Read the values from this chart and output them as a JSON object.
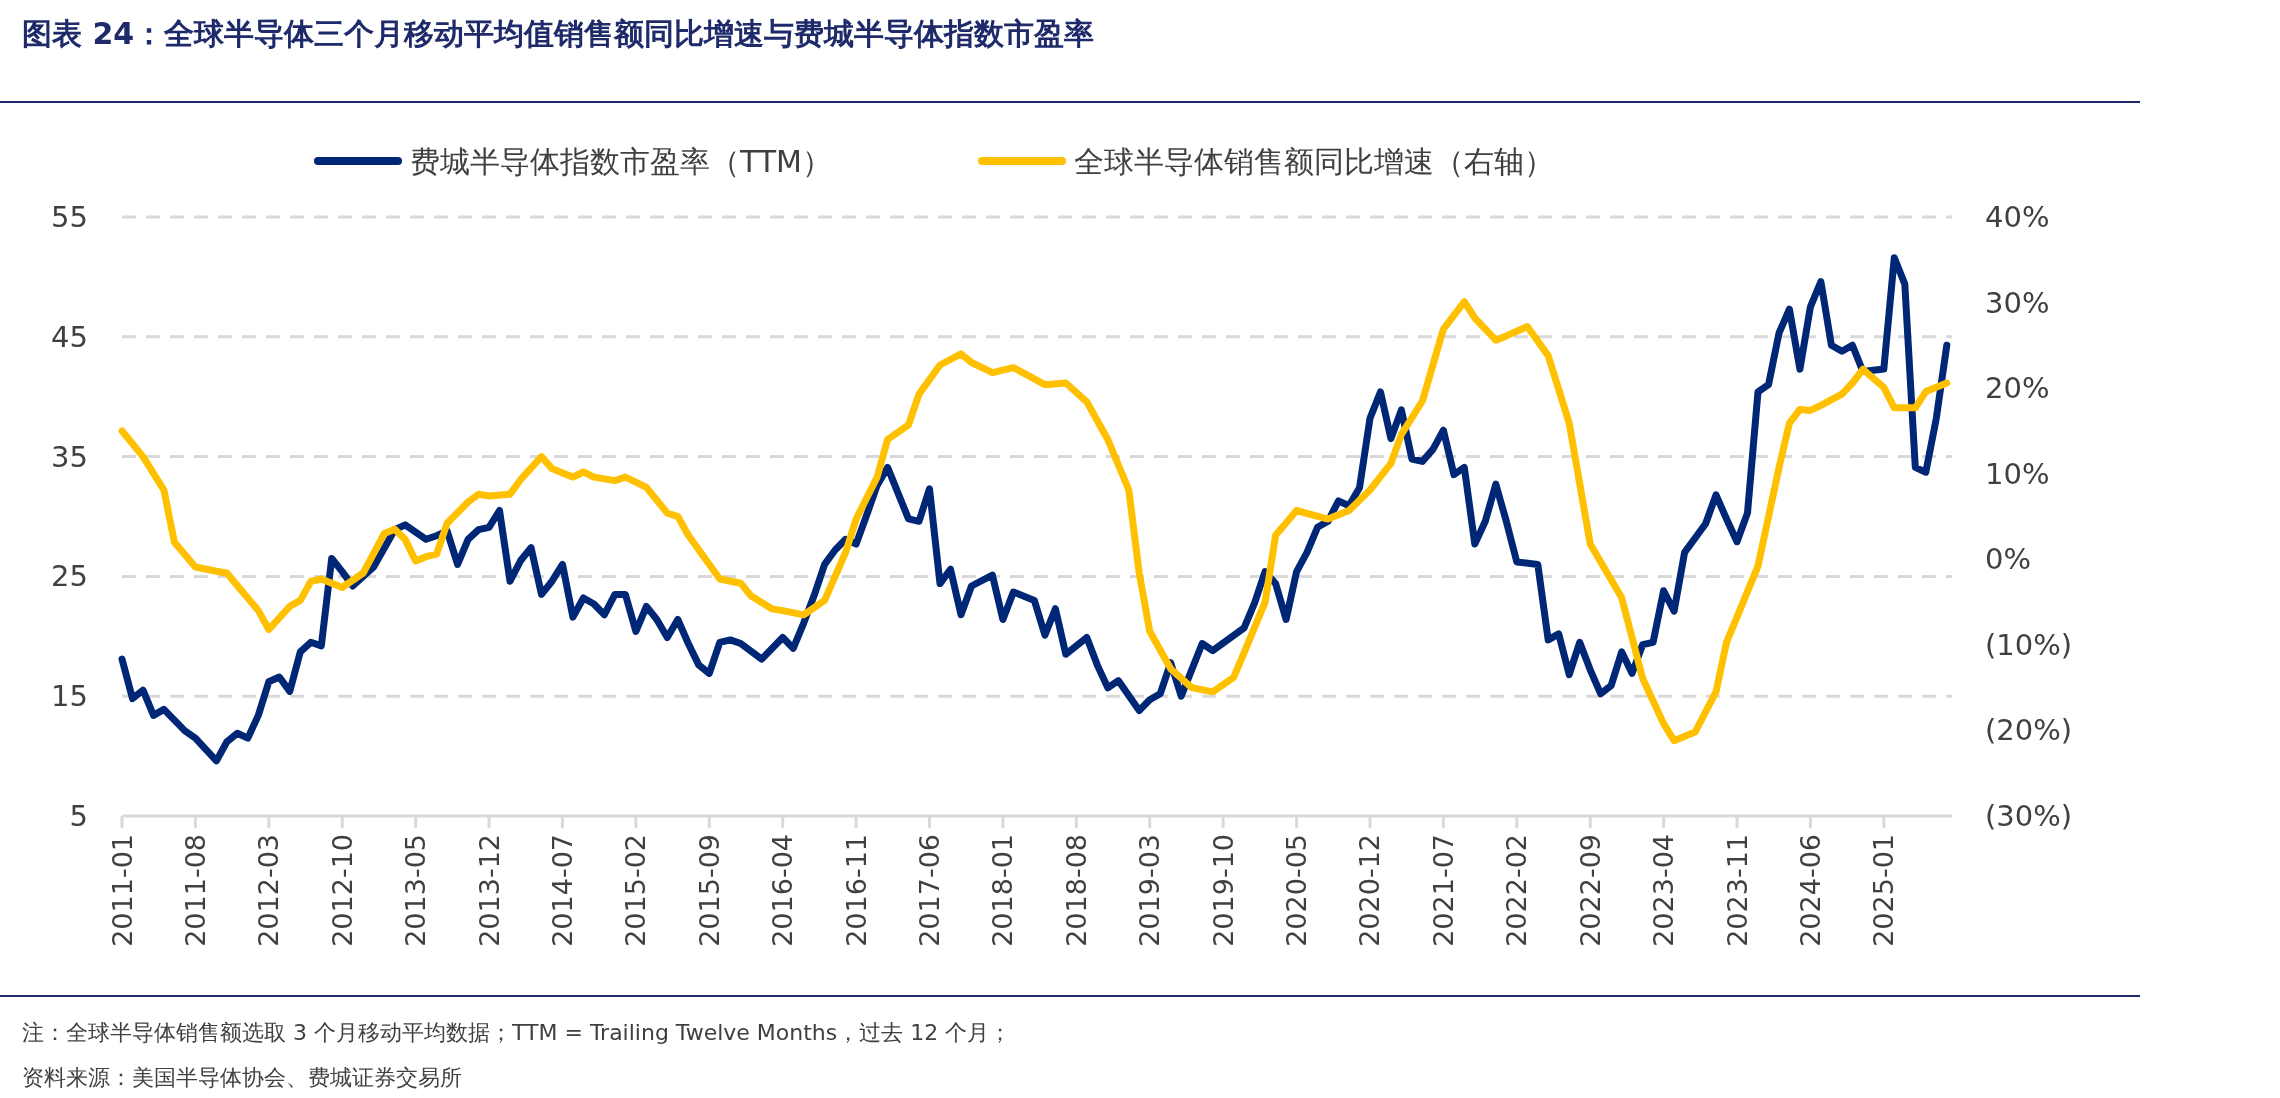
{
  "chart_data": {
    "type": "line",
    "title": "图表 24：全球半导体三个月移动平均值销售额同比增速与费城半导体指数市盈率",
    "xlim": [
      "2011-01",
      "2025-07-16"
    ],
    "xticks": [
      "2011-01",
      "2011-08",
      "2012-03",
      "2012-10",
      "2013-05",
      "2013-12",
      "2014-07",
      "2015-02",
      "2015-09",
      "2016-04",
      "2016-11",
      "2017-06",
      "2018-01",
      "2018-08",
      "2019-03",
      "2019-10",
      "2020-05",
      "2020-12",
      "2021-07",
      "2022-02",
      "2022-09",
      "2023-04",
      "2023-11",
      "2024-06",
      "2025-01"
    ],
    "ylim": [
      5,
      55
    ],
    "yticks": [
      5,
      15,
      25,
      35,
      45,
      55
    ],
    "y2lim": [
      -30,
      40
    ],
    "y2ticks": [
      {
        "value": -30,
        "label": "(30%)"
      },
      {
        "value": -20,
        "label": "(20%)"
      },
      {
        "value": -10,
        "label": "(10%)"
      },
      {
        "value": 0,
        "label": "0%"
      },
      {
        "value": 10,
        "label": "10%"
      },
      {
        "value": 20,
        "label": "20%"
      },
      {
        "value": 30,
        "label": "30%"
      },
      {
        "value": 40,
        "label": "40%"
      }
    ],
    "grid": "y",
    "legend": "top",
    "line_style": "solid",
    "series": [
      {
        "name": "费城半导体指数市盈率（TTM）",
        "color": "#002776",
        "x": [
          "2011-01",
          "2011-02",
          "2011-03",
          "2011-04",
          "2011-05",
          "2011-07",
          "2011-08",
          "2011-10",
          "2011-11",
          "2011-12",
          "2012-01",
          "2012-02",
          "2012-03",
          "2012-04",
          "2012-05",
          "2012-06",
          "2012-07",
          "2012-08",
          "2012-09",
          "2012-10",
          "2012-11",
          "2013-01",
          "2013-03",
          "2013-04",
          "2013-06",
          "2013-07",
          "2013-08",
          "2013-09",
          "2013-10",
          "2013-11",
          "2013-12",
          "2014-01",
          "2014-02",
          "2014-03",
          "2014-04",
          "2014-05",
          "2014-06",
          "2014-07",
          "2014-08",
          "2014-09",
          "2014-10",
          "2014-11",
          "2014-12",
          "2015-01",
          "2015-02",
          "2015-03",
          "2015-04",
          "2015-05",
          "2015-06",
          "2015-07",
          "2015-08",
          "2015-09",
          "2015-10",
          "2015-11",
          "2015-12",
          "2016-02",
          "2016-04",
          "2016-05",
          "2016-06",
          "2016-07",
          "2016-08",
          "2016-09",
          "2016-10",
          "2016-11",
          "2016-12",
          "2017-01",
          "2017-02",
          "2017-04",
          "2017-05",
          "2017-06",
          "2017-07",
          "2017-08",
          "2017-09",
          "2017-10",
          "2017-12",
          "2018-01",
          "2018-02",
          "2018-04",
          "2018-05",
          "2018-06",
          "2018-07",
          "2018-09",
          "2018-10",
          "2018-11",
          "2018-12",
          "2019-02",
          "2019-03",
          "2019-04",
          "2019-05",
          "2019-06",
          "2019-08",
          "2019-09",
          "2019-12",
          "2020-01",
          "2020-02",
          "2020-03",
          "2020-04",
          "2020-05",
          "2020-06",
          "2020-07",
          "2020-08",
          "2020-09",
          "2020-10",
          "2020-11",
          "2020-12",
          "2021-01",
          "2021-02",
          "2021-03",
          "2021-04",
          "2021-05",
          "2021-06",
          "2021-07",
          "2021-08",
          "2021-09",
          "2021-10",
          "2021-11",
          "2021-12",
          "2022-01",
          "2022-02",
          "2022-04",
          "2022-05",
          "2022-06",
          "2022-07",
          "2022-08",
          "2022-09",
          "2022-10",
          "2022-11",
          "2022-12",
          "2023-01",
          "2023-02",
          "2023-03",
          "2023-04",
          "2023-05",
          "2023-06",
          "2023-08",
          "2023-09",
          "2023-10",
          "2023-11",
          "2023-12",
          "2024-01",
          "2024-02",
          "2024-03",
          "2024-04",
          "2024-05",
          "2024-06",
          "2024-07",
          "2024-08",
          "2024-09",
          "2024-10",
          "2024-11",
          "2025-01",
          "2025-02",
          "2025-03",
          "2025-04",
          "2025-05",
          "2025-06",
          "2025-07"
        ],
        "values": [
          18.1,
          14.8,
          15.5,
          13.4,
          13.9,
          12.1,
          11.5,
          9.6,
          11.2,
          11.9,
          11.5,
          13.4,
          16.2,
          16.6,
          15.4,
          18.7,
          19.5,
          19.2,
          26.5,
          25.4,
          24.2,
          25.8,
          28.9,
          29.3,
          28.1,
          28.4,
          28.8,
          26.0,
          28.1,
          28.9,
          29.1,
          30.5,
          24.6,
          26.3,
          27.4,
          23.5,
          24.6,
          26.0,
          21.6,
          23.2,
          22.7,
          21.8,
          23.5,
          23.5,
          20.4,
          22.5,
          21.4,
          19.9,
          21.4,
          19.4,
          17.6,
          16.9,
          19.5,
          19.7,
          19.4,
          18.1,
          19.9,
          19.0,
          21.1,
          23.4,
          26.0,
          27.2,
          28.1,
          27.7,
          30.1,
          32.6,
          34.1,
          29.8,
          29.6,
          32.3,
          24.4,
          25.6,
          21.8,
          24.2,
          25.1,
          21.4,
          23.7,
          23.0,
          20.1,
          22.3,
          18.5,
          19.9,
          17.6,
          15.7,
          16.3,
          13.8,
          14.7,
          15.2,
          17.8,
          15.0,
          19.4,
          18.8,
          20.7,
          22.8,
          25.4,
          24.4,
          21.4,
          25.4,
          27.0,
          29.1,
          29.6,
          31.3,
          30.9,
          32.4,
          38.2,
          40.4,
          36.5,
          38.9,
          34.8,
          34.6,
          35.6,
          37.2,
          33.5,
          34.1,
          27.7,
          29.6,
          32.7,
          29.6,
          26.2,
          26.0,
          19.7,
          20.2,
          16.8,
          19.5,
          17.2,
          15.2,
          15.9,
          18.7,
          16.9,
          19.3,
          19.5,
          23.8,
          22.1,
          27.0,
          29.4,
          31.8,
          29.8,
          27.9,
          30.3,
          40.4,
          41.0,
          45.3,
          47.3,
          42.3,
          47.5,
          49.6,
          44.3,
          43.8,
          44.3,
          42.1,
          42.3,
          51.6,
          49.4,
          34.1,
          33.7,
          38.2,
          44.3
        ]
      },
      {
        "name": "全球半导体销售额同比增速（右轴）",
        "color": "#ffc000",
        "axis": "y2",
        "x": [
          "2011-01",
          "2011-02",
          "2011-03",
          "2011-05",
          "2011-06",
          "2011-08",
          "2011-10",
          "2011-11",
          "2011-12",
          "2012-02",
          "2012-03",
          "2012-05",
          "2012-06",
          "2012-07",
          "2012-08",
          "2012-10",
          "2012-12",
          "2013-02",
          "2013-03",
          "2013-04",
          "2013-05",
          "2013-06",
          "2013-07",
          "2013-08",
          "2013-10",
          "2013-11",
          "2013-12",
          "2014-02",
          "2014-03",
          "2014-05",
          "2014-06",
          "2014-07",
          "2014-08",
          "2014-09",
          "2014-10",
          "2014-12",
          "2015-01",
          "2015-03",
          "2015-05",
          "2015-06",
          "2015-07",
          "2015-10",
          "2015-12",
          "2016-01",
          "2016-03",
          "2016-04",
          "2016-06",
          "2016-08",
          "2016-10",
          "2016-11",
          "2017-01",
          "2017-02",
          "2017-04",
          "2017-05",
          "2017-07",
          "2017-09",
          "2017-10",
          "2017-12",
          "2018-02",
          "2018-05",
          "2018-07",
          "2018-09",
          "2018-10",
          "2018-11",
          "2019-01",
          "2019-02",
          "2019-03",
          "2019-05",
          "2019-07",
          "2019-09",
          "2019-11",
          "2019-12",
          "2020-02",
          "2020-03",
          "2020-05",
          "2020-08",
          "2020-10",
          "2020-12",
          "2021-02",
          "2021-03",
          "2021-05",
          "2021-07",
          "2021-09",
          "2021-10",
          "2021-12",
          "2022-01",
          "2022-03",
          "2022-05",
          "2022-07",
          "2022-09",
          "2022-12",
          "2023-02",
          "2023-04",
          "2023-05",
          "2023-07",
          "2023-09",
          "2023-10",
          "2024-01",
          "2024-03",
          "2024-04",
          "2024-05",
          "2024-06",
          "2024-07",
          "2024-09",
          "2024-10",
          "2024-11",
          "2025-01",
          "2025-02",
          "2025-04",
          "2025-05",
          "2025-07"
        ],
        "values": [
          15.0,
          13.5,
          12.0,
          8.1,
          2.0,
          -0.9,
          -1.4,
          -1.6,
          -3.1,
          -6.0,
          -8.2,
          -5.5,
          -4.8,
          -2.6,
          -2.3,
          -3.3,
          -1.6,
          3.0,
          3.5,
          2.3,
          -0.2,
          0.3,
          0.6,
          4.2,
          6.7,
          7.6,
          7.4,
          7.6,
          9.3,
          12.0,
          10.6,
          10.1,
          9.6,
          10.2,
          9.6,
          9.2,
          9.6,
          8.4,
          5.4,
          5.0,
          2.8,
          -2.3,
          -2.8,
          -4.3,
          -5.8,
          -6.0,
          -6.5,
          -4.8,
          0.8,
          4.7,
          9.6,
          14.0,
          15.7,
          19.3,
          22.7,
          24.0,
          23.0,
          21.8,
          22.4,
          20.4,
          20.6,
          18.4,
          16.2,
          14.0,
          8.1,
          -1.6,
          -8.4,
          -12.8,
          -15.0,
          -15.5,
          -13.8,
          -10.9,
          -5.0,
          2.8,
          5.7,
          4.7,
          5.7,
          8.1,
          11.2,
          14.6,
          18.5,
          26.9,
          30.1,
          28.2,
          25.6,
          26.1,
          27.2,
          23.8,
          15.9,
          1.8,
          -4.5,
          -13.9,
          -19.2,
          -21.2,
          -20.2,
          -15.5,
          -9.7,
          -0.8,
          10.7,
          15.9,
          17.5,
          17.4,
          18.0,
          19.3,
          20.6,
          22.2,
          20.1,
          17.7,
          17.7,
          19.6,
          20.6
        ]
      }
    ],
    "annotations": [
      "注：全球半导体销售额选取 3 个月移动平均数据；TTM = Trailing Twelve Months，过去 12 个月；",
      "资料来源：美国半导体协会、费城证券交易所"
    ]
  }
}
